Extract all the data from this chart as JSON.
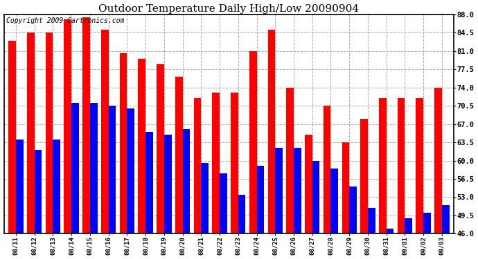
{
  "title": "Outdoor Temperature Daily High/Low 20090904",
  "copyright": "Copyright 2009 Cartronics.com",
  "dates": [
    "08/11",
    "08/12",
    "08/13",
    "08/14",
    "08/15",
    "08/16",
    "08/17",
    "08/18",
    "08/19",
    "08/20",
    "08/21",
    "08/22",
    "08/23",
    "08/24",
    "08/25",
    "08/26",
    "08/27",
    "08/28",
    "08/29",
    "08/30",
    "08/31",
    "09/01",
    "09/02",
    "09/03"
  ],
  "highs": [
    83.0,
    84.5,
    84.5,
    87.0,
    87.5,
    85.0,
    80.5,
    79.5,
    78.5,
    76.0,
    72.0,
    73.0,
    73.0,
    81.0,
    85.0,
    74.0,
    65.0,
    70.5,
    63.5,
    68.0,
    72.0,
    72.0,
    72.0,
    74.0
  ],
  "lows": [
    64.0,
    62.0,
    64.0,
    71.0,
    71.0,
    70.5,
    70.0,
    65.5,
    65.0,
    66.0,
    59.5,
    57.5,
    53.5,
    59.0,
    62.5,
    62.5,
    60.0,
    58.5,
    55.0,
    51.0,
    47.0,
    49.0,
    50.0,
    51.5
  ],
  "high_color": "#ff0000",
  "low_color": "#0000ff",
  "bg_color": "#ffffff",
  "grid_color": "#aaaaaa",
  "ylim_min": 46.0,
  "ylim_max": 88.0,
  "yticks": [
    46.0,
    49.5,
    53.0,
    56.5,
    60.0,
    63.5,
    67.0,
    70.5,
    74.0,
    77.5,
    81.0,
    84.5,
    88.0
  ],
  "bar_width": 0.4,
  "title_fontsize": 11,
  "copyright_fontsize": 7,
  "tick_fontsize": 7.5,
  "xtick_fontsize": 6.5
}
